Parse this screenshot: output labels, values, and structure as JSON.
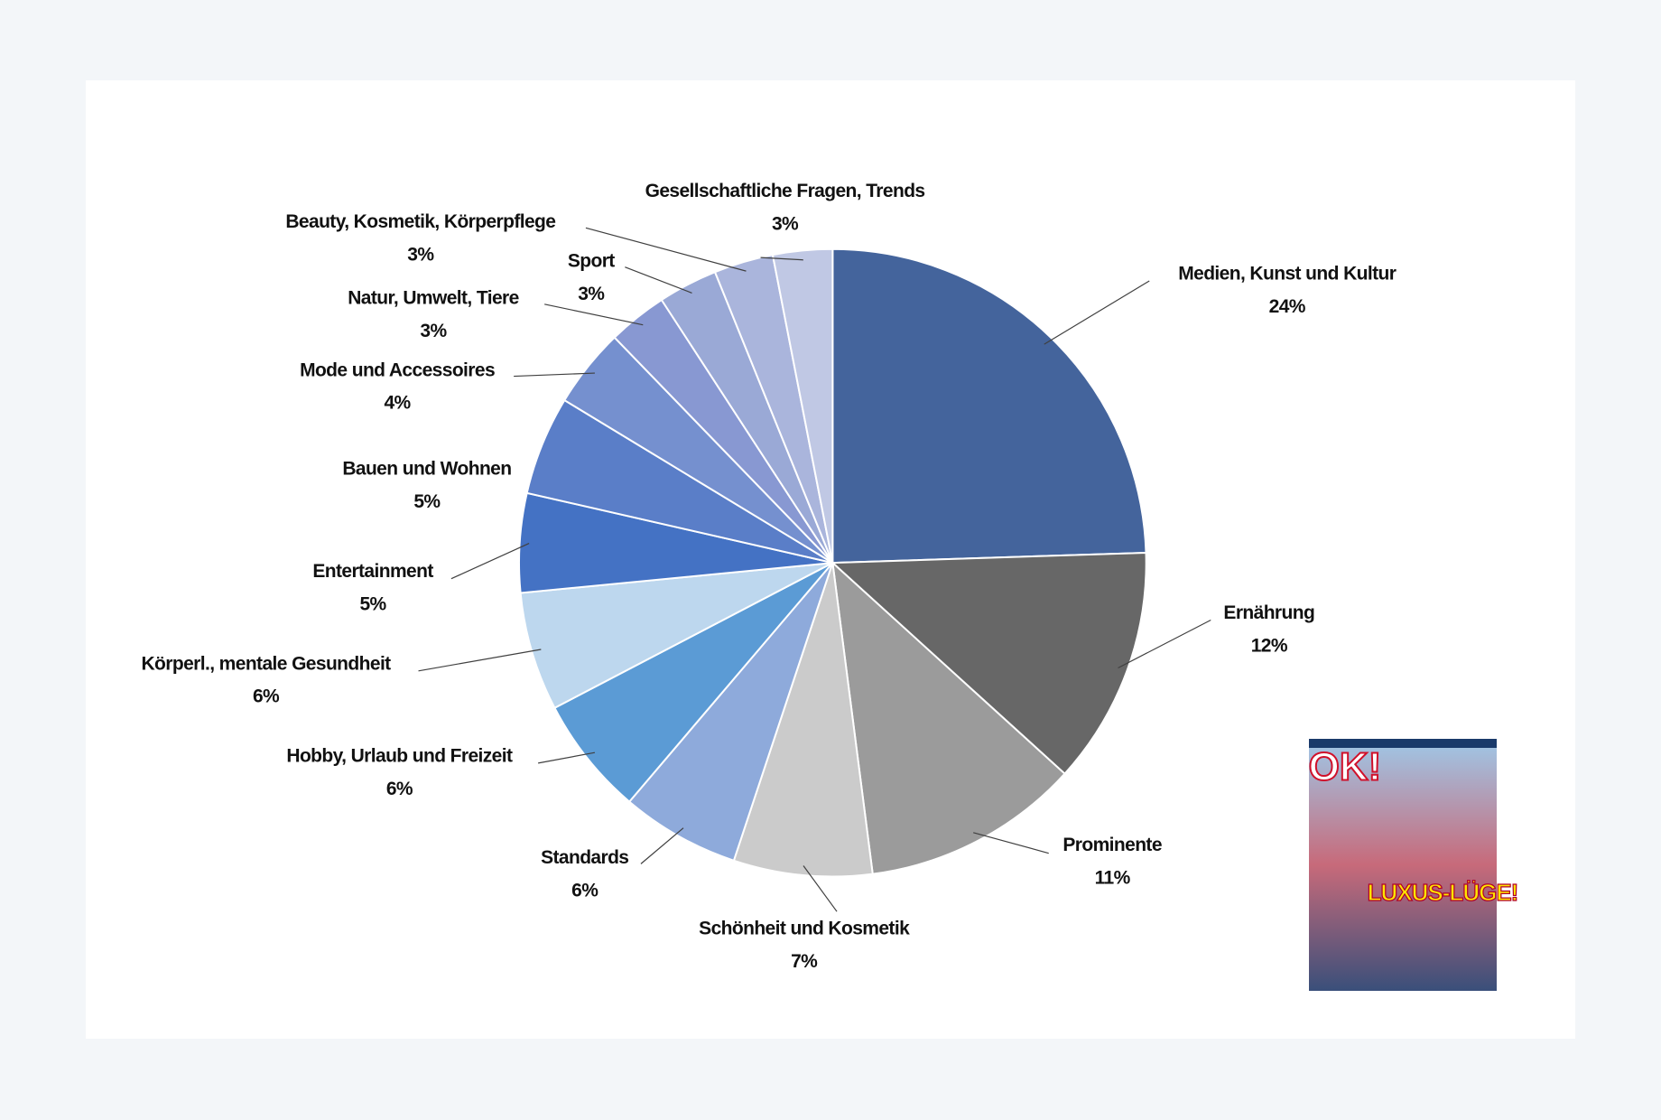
{
  "chart_data": {
    "type": "pie",
    "categories": [
      "Medien, Kunst und Kultur",
      "Ernährung",
      "Prominente",
      "Schönheit und Kosmetik",
      "Standards",
      "Hobby, Urlaub und Freizeit",
      "Körperl., mentale Gesundheit",
      "Entertainment",
      "Bauen und Wohnen",
      "Mode und Accessoires",
      "Natur, Umwelt, Tiere",
      "Sport",
      "Beauty, Kosmetik, Körperpflege",
      "Gesellschaftliche Fragen, Trends"
    ],
    "values": [
      24,
      12,
      11,
      7,
      6,
      6,
      6,
      5,
      5,
      4,
      3,
      3,
      3,
      3
    ],
    "value_labels": [
      "24%",
      "12%",
      "11%",
      "7%",
      "6%",
      "6%",
      "6%",
      "5%",
      "5%",
      "4%",
      "3%",
      "3%",
      "3%",
      "3%"
    ],
    "colors": [
      "#44649c",
      "#676767",
      "#9b9b9b",
      "#cbcbcb",
      "#8eaadb",
      "#5b9bd5",
      "#bdd7ee",
      "#4472c4",
      "#5a7ec8",
      "#7590cf",
      "#8898d2",
      "#9aa9d6",
      "#aab5dc",
      "#c0c8e4"
    ]
  },
  "cover": {
    "logo": "OK!",
    "headline": "LUXUS-LÜGE!"
  }
}
